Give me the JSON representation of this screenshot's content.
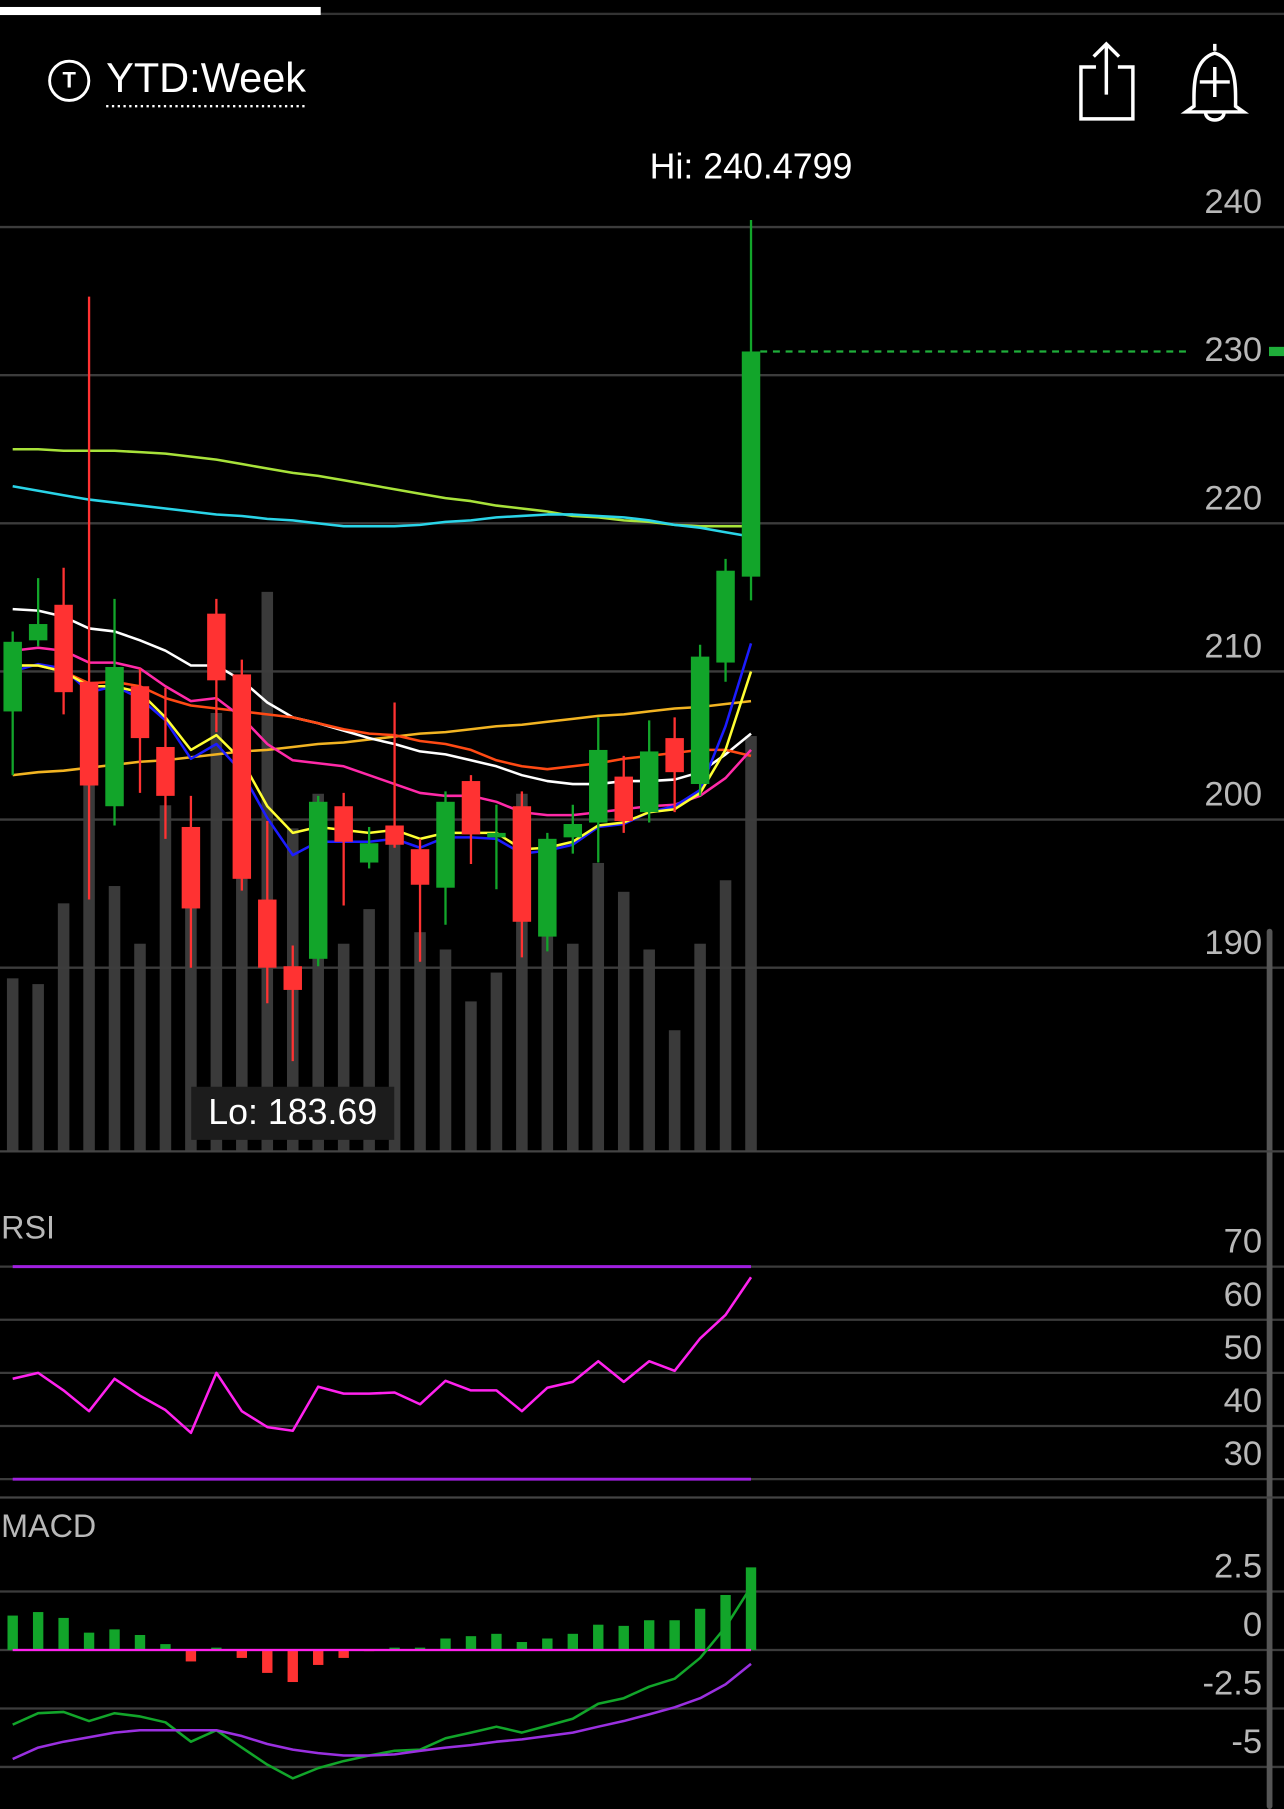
{
  "header": {
    "icon": "T",
    "title": "YTD:Week"
  },
  "chart_data": [
    {
      "type": "candlestick",
      "open": [
        207.3,
        212.1,
        214.5,
        209.3,
        200.9,
        209.0,
        204.9,
        199.5,
        213.9,
        209.8,
        194.6,
        190.1,
        190.6,
        200.9,
        197.1,
        199.6,
        198.0,
        195.4,
        202.6,
        198.8,
        200.9,
        192.1,
        198.8,
        199.8,
        202.9,
        200.5,
        205.5,
        202.4,
        210.6,
        216.4
      ],
      "high": [
        212.7,
        216.3,
        217.0,
        235.3,
        214.9,
        210.2,
        208.9,
        201.6,
        214.9,
        210.8,
        199.9,
        191.5,
        201.6,
        201.8,
        199.5,
        207.9,
        198.7,
        201.9,
        203.0,
        201.0,
        201.9,
        199.1,
        201.0,
        206.9,
        204.3,
        206.7,
        206.9,
        211.8,
        217.6,
        240.4799
      ],
      "low": [
        203.0,
        211.7,
        207.1,
        194.6,
        199.6,
        201.8,
        198.7,
        190.0,
        205.9,
        195.2,
        187.6,
        183.69,
        190.1,
        194.2,
        196.7,
        198.1,
        190.4,
        192.9,
        197.0,
        195.3,
        190.7,
        191.1,
        197.7,
        197.1,
        199.1,
        199.8,
        200.5,
        201.6,
        209.3,
        214.8
      ],
      "close": [
        212.0,
        213.2,
        208.6,
        202.3,
        210.3,
        205.5,
        201.6,
        194.0,
        209.4,
        196.0,
        190.0,
        188.5,
        201.2,
        198.5,
        198.4,
        198.3,
        195.6,
        201.2,
        199.0,
        199.1,
        193.1,
        198.7,
        199.7,
        204.7,
        199.9,
        204.6,
        203.2,
        211.0,
        216.8,
        231.6
      ],
      "up_color": "#12a52a",
      "down_color": "#ff3232",
      "volume": [
        30,
        29,
        43,
        72,
        46,
        36,
        60,
        52,
        76,
        64,
        97,
        56,
        62,
        36,
        42,
        56,
        38,
        35,
        26,
        31,
        62,
        40,
        36,
        50,
        45,
        35,
        21,
        36,
        47,
        72
      ],
      "volume_color": "#3a3a3a",
      "volume_lim": [
        0,
        100
      ],
      "series": [
        {
          "color": "#a8e23a",
          "values": [
            225.0,
            225.0,
            224.9,
            224.9,
            224.9,
            224.8,
            224.7,
            224.5,
            224.3,
            224.0,
            223.7,
            223.4,
            223.2,
            222.9,
            222.6,
            222.3,
            222.0,
            221.7,
            221.5,
            221.2,
            221.0,
            220.8,
            220.5,
            220.4,
            220.2,
            220.1,
            219.9,
            219.8,
            219.8,
            219.8
          ]
        },
        {
          "color": "#2ad4e8",
          "values": [
            222.5,
            222.2,
            221.9,
            221.6,
            221.4,
            221.2,
            221.0,
            220.8,
            220.6,
            220.5,
            220.3,
            220.2,
            220.0,
            219.8,
            219.8,
            219.8,
            219.9,
            220.1,
            220.2,
            220.4,
            220.5,
            220.6,
            220.6,
            220.5,
            220.4,
            220.2,
            219.9,
            219.7,
            219.4,
            219.1
          ]
        },
        {
          "color": "#f2b422",
          "values": [
            203.0,
            203.2,
            203.3,
            203.5,
            203.7,
            203.9,
            204.0,
            204.2,
            204.4,
            204.6,
            204.7,
            204.9,
            205.1,
            205.2,
            205.4,
            205.6,
            205.8,
            205.9,
            206.1,
            206.3,
            206.4,
            206.6,
            206.8,
            207.0,
            207.1,
            207.3,
            207.5,
            207.6,
            207.8,
            208.0
          ]
        },
        {
          "color": "#ffffff",
          "values": [
            214.2,
            214.1,
            213.7,
            212.9,
            212.7,
            212.1,
            211.4,
            210.4,
            210.4,
            209.4,
            207.9,
            206.9,
            206.5,
            206.0,
            205.5,
            205.1,
            204.6,
            204.4,
            204.0,
            203.6,
            203.0,
            202.6,
            202.4,
            202.4,
            202.6,
            202.6,
            202.7,
            203.2,
            204.4,
            205.8
          ]
        },
        {
          "color": "#ff4a14",
          "values": [
            210.4,
            210.4,
            210.0,
            209.2,
            209.3,
            209.0,
            208.2,
            207.7,
            207.5,
            207.3,
            207.1,
            206.9,
            206.5,
            206.1,
            205.8,
            205.7,
            205.3,
            205.1,
            204.7,
            204.0,
            203.6,
            203.4,
            203.6,
            203.8,
            204.1,
            204.3,
            204.5,
            204.7,
            204.7,
            204.3
          ]
        },
        {
          "color": "#ff2aa8",
          "values": [
            211.4,
            211.6,
            211.4,
            210.6,
            210.6,
            210.2,
            209.0,
            208.0,
            208.2,
            206.9,
            205.1,
            204.0,
            203.8,
            203.6,
            203.0,
            202.4,
            201.8,
            201.6,
            201.6,
            201.2,
            200.5,
            200.3,
            200.3,
            200.5,
            200.7,
            200.9,
            201.0,
            201.6,
            202.8,
            204.7
          ]
        },
        {
          "color": "#1c1cff",
          "values": [
            210.0,
            210.5,
            210.2,
            208.6,
            209.0,
            208.2,
            206.7,
            204.1,
            205.1,
            203.2,
            200.1,
            197.6,
            198.5,
            198.5,
            198.5,
            198.7,
            198.1,
            198.8,
            198.8,
            198.7,
            197.7,
            197.9,
            198.3,
            199.5,
            199.7,
            200.5,
            200.9,
            202.0,
            206.3,
            211.9
          ]
        },
        {
          "color": "#ffff33",
          "values": [
            210.4,
            210.4,
            210.0,
            209.0,
            209.0,
            208.6,
            206.9,
            204.7,
            205.7,
            204.0,
            200.9,
            199.1,
            199.5,
            199.3,
            199.1,
            199.3,
            198.7,
            199.1,
            199.1,
            199.1,
            198.0,
            198.1,
            198.5,
            199.6,
            199.8,
            200.5,
            200.7,
            201.8,
            204.7,
            210.0
          ]
        }
      ],
      "annotations": [
        "Hi: 240.4799",
        "Lo: 183.69"
      ],
      "ylim": [
        177.6,
        245.2
      ],
      "yticks": [
        190,
        200,
        210,
        220,
        230,
        240
      ],
      "grid": true,
      "last_line_color": "#1fae3a"
    },
    {
      "type": "line",
      "title": "RSI",
      "color": "#ff22ee",
      "values": [
        48.9,
        50.0,
        46.7,
        42.8,
        48.9,
        45.7,
        43.0,
        38.7,
        50.0,
        42.8,
        39.8,
        39.1,
        47.4,
        46.1,
        46.1,
        46.3,
        44.1,
        48.5,
        46.7,
        46.7,
        42.8,
        47.2,
        48.3,
        52.2,
        48.3,
        52.2,
        50.4,
        56.5,
        60.9,
        68.0
      ],
      "bands": [
        70,
        30
      ],
      "band_color": "#a020e0",
      "ylim": [
        27.2,
        80.4
      ],
      "yticks": [
        70,
        60,
        50,
        40,
        30
      ],
      "grid": true
    },
    {
      "type": "macd",
      "title": "MACD",
      "histogram": [
        1.47,
        1.62,
        1.37,
        0.74,
        0.88,
        0.64,
        0.25,
        -0.49,
        0.1,
        -0.34,
        -0.98,
        -1.37,
        -0.64,
        -0.34,
        -0.05,
        0.1,
        0.1,
        0.49,
        0.59,
        0.69,
        0.34,
        0.49,
        0.69,
        1.08,
        1.03,
        1.27,
        1.27,
        1.76,
        2.35,
        3.53
      ],
      "up_color": "#12a52a",
      "down_color": "#ff3232",
      "zero_color": "#ff22ee",
      "series": [
        {
          "color": "#12a52a",
          "values": [
            -3.19,
            -2.7,
            -2.65,
            -3.04,
            -2.7,
            -2.84,
            -3.09,
            -3.92,
            -3.43,
            -4.17,
            -4.9,
            -5.49,
            -5.05,
            -4.75,
            -4.51,
            -4.31,
            -4.26,
            -3.77,
            -3.53,
            -3.28,
            -3.53,
            -3.24,
            -2.94,
            -2.3,
            -2.06,
            -1.57,
            -1.23,
            -0.34,
            0.98,
            2.7
          ]
        },
        {
          "color": "#9a30e0",
          "values": [
            -4.66,
            -4.17,
            -3.92,
            -3.73,
            -3.53,
            -3.43,
            -3.43,
            -3.43,
            -3.43,
            -3.68,
            -4.02,
            -4.26,
            -4.41,
            -4.51,
            -4.51,
            -4.46,
            -4.31,
            -4.17,
            -4.07,
            -3.92,
            -3.82,
            -3.68,
            -3.53,
            -3.28,
            -3.04,
            -2.75,
            -2.45,
            -2.06,
            -1.47,
            -0.59
          ]
        }
      ],
      "ylim": [
        -6.4,
        4.2
      ],
      "yticks": [
        2.5,
        0,
        -2.5,
        -5
      ],
      "grid": true
    }
  ]
}
